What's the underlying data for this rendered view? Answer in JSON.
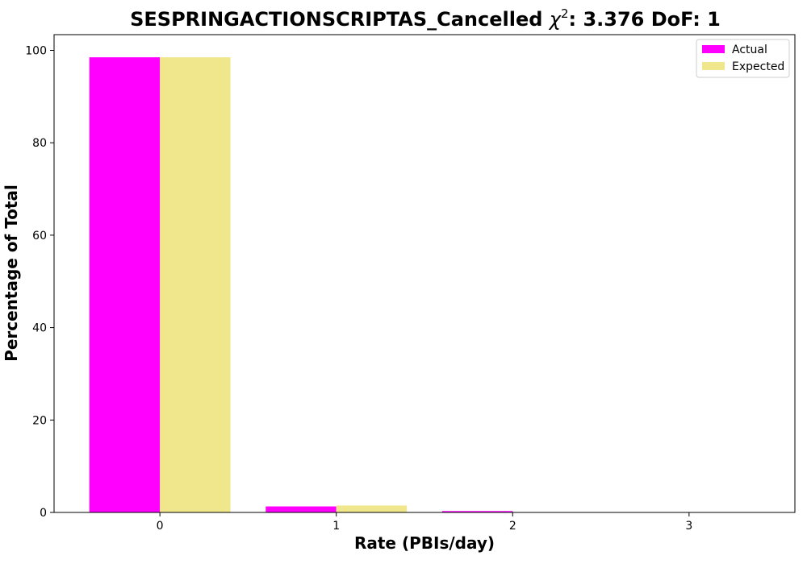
{
  "chart_data": {
    "type": "bar",
    "title_prefix": "SESPRINGACTIONSCRIPTAS_Cancelled ",
    "title_symbol": "χ",
    "title_superscript": "2",
    "title_suffix": ": 3.376 DoF: 1",
    "xlabel": "Rate (PBIs/day)",
    "ylabel": "Percentage of Total",
    "categories": [
      "0",
      "1",
      "2",
      "3"
    ],
    "series": [
      {
        "name": "Actual",
        "color": "#ff00ff",
        "values": [
          98.5,
          1.3,
          0.3,
          0.0
        ]
      },
      {
        "name": "Expected",
        "color": "#f0e68c",
        "values": [
          98.5,
          1.5,
          0.0,
          0.0
        ]
      }
    ],
    "ylim": [
      0,
      103.4
    ],
    "yticks": [
      0,
      20,
      40,
      60,
      80,
      100
    ],
    "grid": false,
    "legend_position": "top-right"
  }
}
